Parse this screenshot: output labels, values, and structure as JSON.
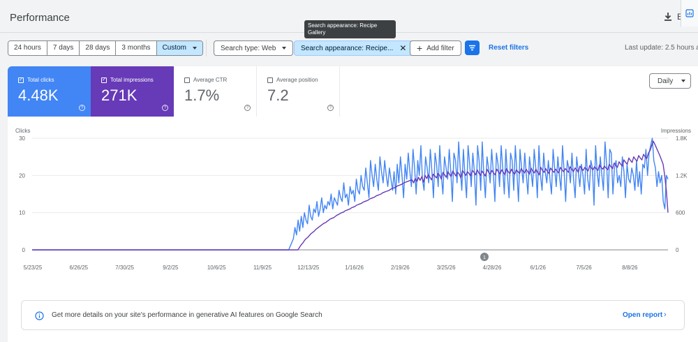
{
  "header": {
    "title": "Performance",
    "export_truncated": "E"
  },
  "tooltip": {
    "text": "Search appearance: Recipe Gallery"
  },
  "toolbar": {
    "date_ranges": [
      "24 hours",
      "7 days",
      "28 days",
      "3 months"
    ],
    "custom_label": "Custom",
    "search_type": "Search type: Web",
    "search_appearance": "Search appearance: Recipe...",
    "add_filter": "Add filter",
    "reset_filters": "Reset filters",
    "last_update": "Last update: 2.5 hours a"
  },
  "metrics": {
    "clicks": {
      "label": "Total clicks",
      "value": "4.48K",
      "checked": true,
      "color": "#4285f4"
    },
    "impressions": {
      "label": "Total impressions",
      "value": "271K",
      "checked": true,
      "color": "#673ab7"
    },
    "ctr": {
      "label": "Average CTR",
      "value": "1.7%",
      "checked": false
    },
    "position": {
      "label": "Average position",
      "value": "7.2",
      "checked": false
    }
  },
  "granularity": {
    "selected": "Daily"
  },
  "annotation_marker": "1",
  "chart_data": {
    "type": "line",
    "ylabel_left": "Clicks",
    "ylabel_right": "Impressions",
    "y_left_ticks": [
      "0",
      "10",
      "20",
      "30"
    ],
    "y_right_ticks": [
      "0",
      "600",
      "1.2K",
      "1.8K"
    ],
    "ylim_left": [
      0,
      30
    ],
    "ylim_right": [
      0,
      1800
    ],
    "x_tick_labels": [
      "5/23/25",
      "6/26/25",
      "7/30/25",
      "9/2/25",
      "10/6/25",
      "11/9/25",
      "12/13/25",
      "1/16/26",
      "2/19/26",
      "3/25/26",
      "4/28/26",
      "6/1/26",
      "7/5/26",
      "8/8/26"
    ],
    "x_range": [
      "5/23/25",
      "8/27/26"
    ],
    "grid": true,
    "series": [
      {
        "name": "Clicks",
        "axis": "left",
        "color": "#4285f4",
        "values": [
          0,
          0,
          0,
          0,
          0,
          0,
          0,
          0,
          0,
          0,
          0,
          0,
          0,
          0,
          0,
          0,
          0,
          0,
          0,
          0,
          0,
          0,
          0,
          0,
          0,
          0,
          0,
          0,
          0,
          0,
          0,
          0,
          0,
          0,
          0,
          0,
          0,
          0,
          0,
          0,
          0,
          0,
          0,
          0,
          0,
          0,
          0,
          0,
          0,
          0,
          0,
          0,
          0,
          0,
          0,
          0,
          0,
          0,
          0,
          0,
          0,
          0,
          0,
          0,
          0,
          0,
          0,
          0,
          0,
          0,
          0,
          0,
          0,
          0,
          0,
          0,
          0,
          0,
          0,
          0,
          0,
          0,
          0,
          0,
          0,
          0,
          0,
          0,
          0,
          0,
          0,
          0,
          0,
          0,
          0,
          0,
          0,
          0,
          0,
          0,
          0,
          0,
          0,
          0,
          0,
          0,
          0,
          0,
          0,
          0,
          0,
          0,
          0,
          0,
          0,
          0,
          0,
          0,
          0,
          0,
          0,
          0,
          0,
          0,
          0,
          0,
          0,
          0,
          0,
          0,
          0,
          0,
          0,
          0,
          0,
          0,
          0,
          0,
          0,
          0,
          0,
          0,
          0,
          0,
          0,
          0,
          0,
          0,
          0,
          0,
          0,
          0,
          0,
          0,
          0,
          0,
          0,
          0,
          0,
          0,
          0,
          0,
          0,
          0,
          1,
          2,
          3,
          6,
          4,
          8,
          5,
          9,
          6,
          10,
          8,
          7,
          12,
          9,
          8,
          11,
          10,
          13,
          9,
          11,
          14,
          10,
          12,
          11,
          13,
          12,
          15,
          11,
          14,
          13,
          12,
          16,
          14,
          13,
          18,
          14,
          15,
          12,
          17,
          15,
          16,
          13,
          19,
          16,
          15,
          20,
          17,
          16,
          22,
          18,
          14,
          24,
          20,
          17,
          23,
          19,
          16,
          25,
          21,
          18,
          24,
          20,
          17,
          22,
          19,
          16,
          21,
          15,
          23,
          18,
          25,
          20,
          14,
          23,
          19,
          26,
          21,
          17,
          27,
          22,
          15,
          24,
          20,
          28,
          19,
          16,
          25,
          22,
          18,
          27,
          21,
          14,
          26,
          23,
          17,
          28,
          20,
          15,
          25,
          22,
          19,
          27,
          21,
          13,
          26,
          24,
          18,
          29,
          22,
          16,
          27,
          20,
          14,
          28,
          23,
          17,
          26,
          21,
          12,
          28,
          24,
          16,
          29,
          20,
          14,
          25,
          22,
          18,
          27,
          21,
          13,
          26,
          23,
          17,
          28,
          22,
          15,
          27,
          20,
          14,
          26,
          24,
          16,
          28,
          21,
          13,
          27,
          22,
          18,
          26,
          20,
          15,
          25,
          21,
          17,
          27,
          22,
          14,
          28,
          20,
          16,
          26,
          21,
          18,
          24,
          19,
          15,
          27,
          22,
          17,
          25,
          20,
          16,
          28,
          21,
          13,
          24,
          22,
          18,
          26,
          19,
          14,
          25,
          21,
          17,
          23,
          20,
          15,
          27,
          19,
          16,
          24,
          22,
          12,
          28,
          21,
          17,
          25,
          20,
          16,
          29,
          23,
          14,
          27,
          26,
          15,
          22,
          24,
          18,
          20,
          17,
          25,
          21,
          14,
          23,
          19,
          18,
          22,
          20,
          16,
          24,
          17,
          21,
          15,
          23,
          22,
          27,
          20,
          26,
          28,
          30,
          24,
          22,
          17,
          21,
          18,
          20,
          13,
          11,
          20,
          19
        ]
      },
      {
        "name": "Impressions",
        "axis": "right",
        "color": "#673ab7",
        "values": [
          0,
          0,
          0,
          0,
          0,
          0,
          0,
          0,
          0,
          0,
          0,
          0,
          0,
          0,
          0,
          0,
          0,
          0,
          0,
          0,
          0,
          0,
          0,
          0,
          0,
          0,
          0,
          0,
          0,
          0,
          0,
          0,
          0,
          0,
          0,
          0,
          0,
          0,
          0,
          0,
          0,
          0,
          0,
          0,
          0,
          0,
          0,
          0,
          0,
          0,
          0,
          0,
          0,
          0,
          0,
          0,
          0,
          0,
          0,
          0,
          0,
          0,
          0,
          0,
          0,
          0,
          0,
          0,
          0,
          0,
          0,
          0,
          0,
          0,
          0,
          0,
          0,
          0,
          0,
          0,
          0,
          0,
          0,
          0,
          0,
          0,
          0,
          0,
          0,
          0,
          0,
          0,
          0,
          0,
          0,
          0,
          0,
          0,
          0,
          0,
          0,
          0,
          0,
          0,
          0,
          0,
          0,
          0,
          0,
          0,
          0,
          0,
          0,
          0,
          0,
          0,
          0,
          0,
          0,
          0,
          0,
          0,
          0,
          0,
          0,
          0,
          0,
          0,
          0,
          0,
          0,
          0,
          0,
          0,
          0,
          0,
          0,
          0,
          0,
          0,
          0,
          0,
          0,
          0,
          0,
          0,
          0,
          0,
          0,
          0,
          0,
          0,
          0,
          0,
          0,
          0,
          0,
          0,
          0,
          0,
          0,
          0,
          0,
          0,
          40,
          80,
          110,
          150,
          180,
          200,
          230,
          260,
          280,
          300,
          330,
          350,
          370,
          390,
          410,
          430,
          440,
          460,
          480,
          500,
          510,
          520,
          540,
          560,
          570,
          590,
          600,
          610,
          630,
          640,
          650,
          660,
          680,
          690,
          700,
          720,
          730,
          740,
          750,
          770,
          780,
          790,
          800,
          820,
          830,
          840,
          850,
          870,
          880,
          890,
          900,
          920,
          930,
          940,
          950,
          960,
          980,
          990,
          1000,
          1010,
          1030,
          1040,
          1050,
          1060,
          1080,
          1090,
          1100,
          1110,
          1120,
          1130,
          1080,
          1150,
          1100,
          1170,
          1120,
          1180,
          1090,
          1200,
          1150,
          1210,
          1170,
          1130,
          1220,
          1190,
          1160,
          1230,
          1200,
          1140,
          1250,
          1210,
          1170,
          1260,
          1220,
          1180,
          1270,
          1230,
          1190,
          1250,
          1220,
          1160,
          1280,
          1240,
          1200,
          1260,
          1230,
          1190,
          1280,
          1250,
          1210,
          1290,
          1240,
          1200,
          1270,
          1230,
          1190,
          1300,
          1250,
          1220,
          1280,
          1240,
          1210,
          1300,
          1260,
          1220,
          1290,
          1250,
          1210,
          1310,
          1260,
          1230,
          1300,
          1250,
          1220,
          1290,
          1260,
          1230,
          1310,
          1270,
          1240,
          1300,
          1260,
          1220,
          1320,
          1270,
          1240,
          1300,
          1250,
          1210,
          1330,
          1280,
          1250,
          1310,
          1270,
          1230,
          1320,
          1280,
          1250,
          1300,
          1270,
          1240,
          1330,
          1290,
          1260,
          1310,
          1280,
          1250,
          1340,
          1300,
          1260,
          1320,
          1290,
          1250,
          1350,
          1310,
          1280,
          1330,
          1300,
          1270,
          1360,
          1320,
          1290,
          1340,
          1310,
          1280,
          1370,
          1330,
          1300,
          1350,
          1320,
          1290,
          1380,
          1340,
          1310,
          1400,
          1360,
          1330,
          1420,
          1380,
          1350,
          1450,
          1410,
          1380,
          1480,
          1440,
          1410,
          1500,
          1460,
          1430,
          1520,
          1480,
          1450,
          1540,
          1500,
          1470,
          1560,
          1600,
          1680,
          1750,
          1700,
          1640,
          1580,
          1520,
          1450,
          1380,
          1200,
          950,
          600
        ]
      }
    ]
  },
  "banner": {
    "text": "Get more details on your site's performance in generative AI features on Google Search",
    "link": "Open report"
  },
  "colors": {
    "accent": "#1a73e8",
    "clicks": "#4285f4",
    "impressions": "#673ab7",
    "custom_active": "#c2e7ff"
  }
}
